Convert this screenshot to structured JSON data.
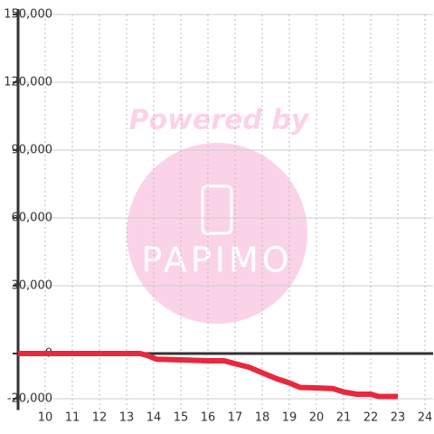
{
  "chart_data": {
    "type": "line",
    "watermark": {
      "top": "Powered by",
      "logo": "PAPIMO"
    },
    "x": [
      9,
      13.5,
      13.8,
      14.1,
      15,
      16,
      16.6,
      17,
      17.5,
      18,
      18.5,
      19,
      19.4,
      20,
      20.6,
      21,
      21.5,
      22,
      22.3,
      23
    ],
    "series": [
      {
        "color": "#e8283c",
        "values": [
          0,
          0,
          -1000,
          -2500,
          -2800,
          -3200,
          -3200,
          -4500,
          -6000,
          -8500,
          -11000,
          -13000,
          -15000,
          -15200,
          -15500,
          -17000,
          -18000,
          -18000,
          -19000,
          -19000
        ]
      }
    ],
    "xlim": [
      9,
      24.3
    ],
    "xticks": [
      10,
      11,
      12,
      13,
      14,
      15,
      16,
      17,
      18,
      19,
      20,
      21,
      22,
      23,
      24
    ],
    "ylim": [
      -25000,
      150000
    ],
    "yticks": [
      {
        "value": -20000,
        "label": "-20,000"
      },
      0,
      {
        "value": 30000,
        "label": "30,000"
      },
      {
        "value": 60000,
        "label": "60,000"
      },
      {
        "value": 90000,
        "label": "90,000"
      },
      {
        "value": 120000,
        "label": "120,000"
      },
      {
        "value": 150000,
        "label": "150,000"
      }
    ],
    "grid": true
  }
}
